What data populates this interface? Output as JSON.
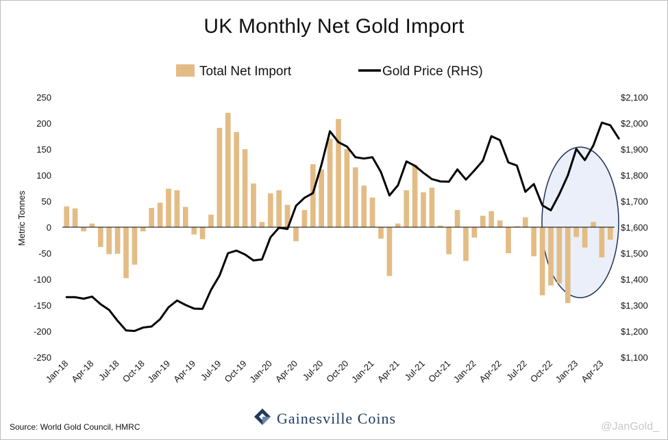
{
  "chart_data": {
    "type": "bar",
    "title": "UK Monthly Net Gold Import",
    "ylabel": "Metric Tonnes",
    "ylim": [
      -250,
      250
    ],
    "y2lim": [
      1100,
      2100
    ],
    "yticks": [
      "250",
      "200",
      "150",
      "100",
      "50",
      "0",
      "-50",
      "-100",
      "-150",
      "-200",
      "-250"
    ],
    "y2ticks": [
      "$2,100",
      "$2,000",
      "$1,900",
      "$1,800",
      "$1,700",
      "$1,600",
      "$1,500",
      "$1,400",
      "$1,300",
      "$1,200",
      "$1,100"
    ],
    "xticks": [
      "Jan-18",
      "Apr-18",
      "Jul-18",
      "Oct-18",
      "Jan-19",
      "Apr-19",
      "Jul-19",
      "Oct-19",
      "Jan-20",
      "Apr-20",
      "Jul-20",
      "Oct-20",
      "Jan-21",
      "Apr-21",
      "Jul-21",
      "Oct-21",
      "Jan-22",
      "Apr-22",
      "Jul-22",
      "Oct-22",
      "Jan-23",
      "Apr-23"
    ],
    "legend_position": "top",
    "series": [
      {
        "name": "Total Net Import",
        "kind": "bar",
        "color": "#e3bc85",
        "values": [
          40,
          36,
          -8,
          7,
          -38,
          -52,
          -51,
          -98,
          -72,
          -8,
          37,
          47,
          74,
          71,
          39,
          -14,
          -23,
          24,
          191,
          220,
          183,
          150,
          84,
          10,
          65,
          71,
          43,
          -27,
          33,
          121,
          111,
          170,
          208,
          150,
          115,
          80,
          57,
          -22,
          -94,
          7,
          71,
          120,
          67,
          76,
          3,
          -52,
          33,
          -65,
          -20,
          22,
          31,
          13,
          -50,
          2,
          19,
          -56,
          -131,
          -112,
          -108,
          -146,
          -19,
          -39,
          10,
          -58,
          -24
        ]
      },
      {
        "name": "Gold Price (RHS)",
        "kind": "line",
        "color": "#000000",
        "values": [
          1331,
          1331,
          1325,
          1333,
          1304,
          1282,
          1240,
          1203,
          1201,
          1214,
          1218,
          1246,
          1292,
          1318,
          1301,
          1287,
          1286,
          1359,
          1414,
          1500,
          1510,
          1495,
          1472,
          1476,
          1561,
          1598,
          1593,
          1682,
          1713,
          1731,
          1840,
          1969,
          1927,
          1910,
          1869,
          1864,
          1869,
          1812,
          1722,
          1761,
          1853,
          1836,
          1809,
          1785,
          1776,
          1775,
          1822,
          1783,
          1818,
          1856,
          1950,
          1935,
          1849,
          1837,
          1736,
          1766,
          1684,
          1665,
          1727,
          1799,
          1901,
          1858,
          1914,
          2002,
          1992,
          1941
        ]
      }
    ]
  },
  "footer": {
    "source": "Source: World Gold Council, HMRC",
    "brand": "Gainesville Coins",
    "watermark": "@JanGold_"
  },
  "colors": {
    "bar": "#e3bc85",
    "line": "#000000",
    "highlight_fill": "#e6ecf8",
    "highlight_stroke": "#1f2f52",
    "brand": "#1f3a5f"
  }
}
